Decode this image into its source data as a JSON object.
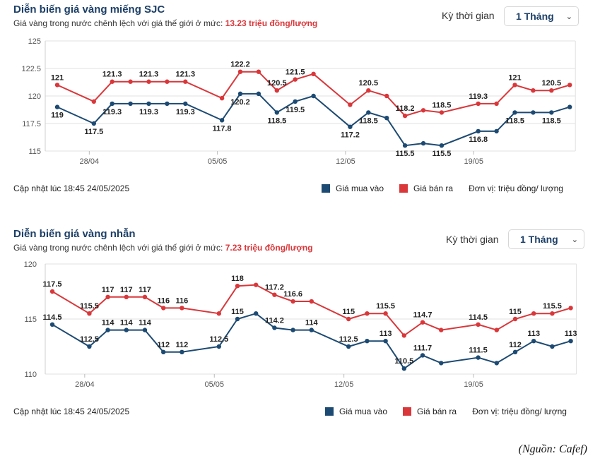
{
  "chart_data": [
    {
      "type": "line",
      "title": "Diễn biến giá vàng miếng SJC",
      "subtitle_prefix": "Giá vàng trong nước chênh lệch với giá thế giới ở mức:",
      "subtitle_value": "13.23 triệu đồng/lượng",
      "period_label": "Kỳ thời gian",
      "period_value": "1 Tháng",
      "updated": "Cập nhật lúc 18:45 24/05/2025",
      "unit": "Đơn vị: triệu đồng/ lượng",
      "ylim": [
        115,
        125
      ],
      "yticks": [
        "115",
        "117.5",
        "120",
        "122.5",
        "125"
      ],
      "grid": true,
      "legend_position": "bottom-right",
      "xtick_labels": [
        {
          "day": 1.75,
          "label": "28/04"
        },
        {
          "day": 8.75,
          "label": "05/05"
        },
        {
          "day": 15.75,
          "label": "12/05"
        },
        {
          "day": 22.75,
          "label": "19/05"
        }
      ],
      "days": [
        0,
        2,
        3,
        4,
        5,
        6,
        7,
        9,
        10,
        11,
        12,
        13,
        14,
        16,
        17,
        18,
        19,
        20,
        21,
        23,
        24,
        25,
        26,
        27,
        28
      ],
      "series": [
        {
          "name": "Giá mua vào",
          "color": "#1c4a72",
          "values": [
            119,
            117.5,
            119.3,
            119.3,
            119.3,
            119.3,
            119.3,
            117.8,
            120.2,
            120.2,
            118.5,
            119.5,
            120,
            117.2,
            118.5,
            118,
            115.5,
            115.7,
            115.5,
            116.8,
            116.8,
            118.5,
            118.5,
            118.5,
            119
          ],
          "labels": [
            "119",
            "117.5",
            "119.3",
            "",
            "119.3",
            "",
            "119.3",
            "117.8",
            "120.2",
            "",
            "118.5",
            "119.5",
            "",
            "117.2",
            "118.5",
            "",
            "115.5",
            "",
            "115.5",
            "116.8",
            "",
            "118.5",
            "",
            "118.5",
            ""
          ],
          "label_pos": "below"
        },
        {
          "name": "Giá bán ra",
          "color": "#d9373a",
          "values": [
            121,
            119.5,
            121.3,
            121.3,
            121.3,
            121.3,
            121.3,
            119.8,
            122.2,
            122.2,
            120.5,
            121.5,
            122,
            119.2,
            120.5,
            120,
            118.2,
            118.7,
            118.5,
            119.3,
            119.3,
            121,
            120.5,
            120.5,
            121
          ],
          "labels": [
            "121",
            "",
            "121.3",
            "",
            "121.3",
            "",
            "121.3",
            "",
            "122.2",
            "",
            "120.5",
            "121.5",
            "",
            "",
            "120.5",
            "",
            "118.2",
            "",
            "118.5",
            "119.3",
            "",
            "121",
            "",
            "120.5",
            ""
          ],
          "label_pos": "above"
        }
      ]
    },
    {
      "type": "line",
      "title": "Diễn biến giá vàng nhẫn",
      "subtitle_prefix": "Giá vàng trong nước chênh lệch với giá thế giới ở mức:",
      "subtitle_value": "7.23 triệu đồng/lượng",
      "period_label": "Kỳ thời gian",
      "period_value": "1 Tháng",
      "updated": "Cập nhật lúc 18:45 24/05/2025",
      "unit": "Đơn vị: triệu đồng/ lượng",
      "ylim": [
        110,
        120
      ],
      "yticks": [
        "110",
        "115",
        "120"
      ],
      "grid": true,
      "legend_position": "bottom-right",
      "xtick_labels": [
        {
          "day": 1.75,
          "label": "28/04"
        },
        {
          "day": 8.75,
          "label": "05/05"
        },
        {
          "day": 15.75,
          "label": "12/05"
        },
        {
          "day": 22.75,
          "label": "19/05"
        }
      ],
      "days": [
        0,
        2,
        3,
        4,
        5,
        6,
        7,
        9,
        10,
        11,
        12,
        13,
        14,
        16,
        17,
        18,
        19,
        20,
        21,
        23,
        24,
        25,
        26,
        27,
        28
      ],
      "series": [
        {
          "name": "Giá mua vào",
          "color": "#1c4a72",
          "values": [
            114.5,
            112.5,
            114,
            114,
            114,
            112,
            112,
            112.5,
            115,
            115.5,
            114.2,
            114,
            114,
            112.5,
            113,
            113,
            110.5,
            111.7,
            111,
            111.5,
            111,
            112,
            113,
            112.5,
            113
          ],
          "labels": [
            "114.5",
            "112.5",
            "114",
            "114",
            "114",
            "112",
            "112",
            "112.5",
            "115",
            "",
            "114.2",
            "",
            "114",
            "112.5",
            "",
            "113",
            "110.5",
            "111.7",
            "",
            "111.5",
            "",
            "112",
            "113",
            "",
            "113"
          ],
          "label_pos": "above"
        },
        {
          "name": "Giá bán ra",
          "color": "#d9373a",
          "values": [
            117.5,
            115.5,
            117,
            117,
            117,
            116,
            116,
            115.5,
            118,
            118.1,
            117.2,
            116.6,
            116.6,
            115,
            115.5,
            115.5,
            113.5,
            114.7,
            114,
            114.5,
            114,
            115,
            115.5,
            115.5,
            116
          ],
          "labels": [
            "117.5",
            "115.5",
            "117",
            "117",
            "117",
            "116",
            "116",
            "",
            "118",
            "",
            "117.2",
            "116.6",
            "",
            "115",
            "",
            "115.5",
            "",
            "114.7",
            "",
            "114.5",
            "",
            "115",
            "",
            "115.5",
            ""
          ],
          "label_pos": "above"
        }
      ]
    }
  ],
  "source": "(Nguồn: Cafef)"
}
